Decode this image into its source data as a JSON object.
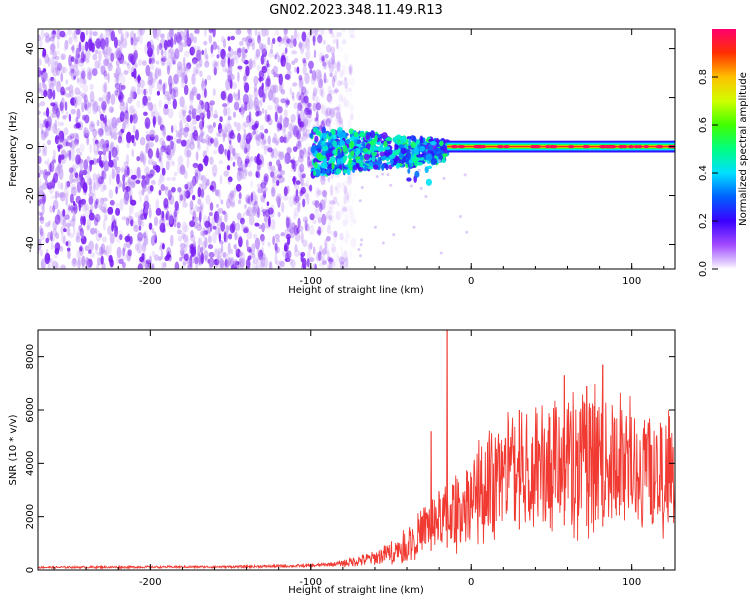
{
  "title": "GN02.2023.348.11.49.R13",
  "colors": {
    "snr_line": "#f03a32",
    "noise": "#7b1cf2",
    "signal_core": "#e8242a",
    "axis": "#000000"
  },
  "chart_data": [
    {
      "type": "heatmap",
      "name": "spectrogram",
      "xlabel": "Height of straight line (km)",
      "ylabel": "Frequency (Hz)",
      "xlim": [
        -270,
        127
      ],
      "ylim": [
        -50,
        48
      ],
      "xticks": [
        -200,
        -100,
        0,
        100
      ],
      "yticks": [
        -40,
        -20,
        0,
        20,
        40
      ],
      "colorbar": {
        "label": "Normalized spectral amplitude",
        "range": [
          0,
          1
        ],
        "ticks": [
          0.0,
          0.2,
          0.4,
          0.6,
          0.8
        ],
        "colormap": "hsv-rainbow"
      },
      "regions": [
        {
          "description_key": "noise",
          "x_range": [
            -270,
            -80
          ],
          "freq_range": [
            -50,
            48
          ],
          "amplitude": 0.2
        },
        {
          "description_key": "onset",
          "x_range": [
            -100,
            -15
          ],
          "freq_range": [
            -20,
            6
          ],
          "amplitude": 0.45
        },
        {
          "description_key": "steady",
          "x_range": [
            -15,
            127
          ],
          "freq_range": [
            -2,
            2
          ],
          "amplitude": 0.9
        }
      ]
    },
    {
      "type": "line",
      "name": "snr",
      "xlabel": "Height of straight line (km)",
      "ylabel": "SNR (10 * v/v)",
      "xlim": [
        -270,
        127
      ],
      "ylim": [
        0,
        9000
      ],
      "xticks": [
        -200,
        -100,
        0,
        100
      ],
      "yticks": [
        0,
        2000,
        4000,
        6000,
        8000
      ],
      "envelope": [
        {
          "x": -270,
          "y": 100
        },
        {
          "x": -150,
          "y": 120
        },
        {
          "x": -100,
          "y": 160
        },
        {
          "x": -80,
          "y": 250
        },
        {
          "x": -60,
          "y": 450
        },
        {
          "x": -45,
          "y": 800
        },
        {
          "x": -35,
          "y": 1300
        },
        {
          "x": -25,
          "y": 1800
        },
        {
          "x": -15,
          "y": 2100
        },
        {
          "x": 0,
          "y": 2700
        },
        {
          "x": 20,
          "y": 3600
        },
        {
          "x": 40,
          "y": 4000
        },
        {
          "x": 60,
          "y": 4200
        },
        {
          "x": 80,
          "y": 4100
        },
        {
          "x": 100,
          "y": 3900
        },
        {
          "x": 127,
          "y": 3500
        }
      ],
      "peaks": [
        {
          "x": -15,
          "y": 9000
        },
        {
          "x": -25,
          "y": 5200
        },
        {
          "x": 58,
          "y": 7300
        },
        {
          "x": 82,
          "y": 7700
        },
        {
          "x": 72,
          "y": 6900
        },
        {
          "x": 30,
          "y": 6000
        }
      ]
    }
  ]
}
